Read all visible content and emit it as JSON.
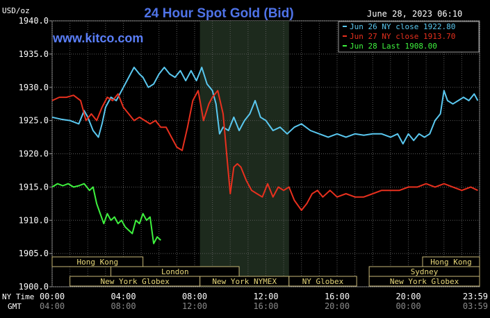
{
  "chart_data": {
    "type": "line",
    "title": "24 Hour Spot Gold (Bid)",
    "watermark": "www.kitco.com",
    "date_label": "June 28, 2023 06:10",
    "ylabel": "USD/oz",
    "ylim": [
      1900,
      1940
    ],
    "y_ticks": [
      "1940.0",
      "1935.0",
      "1930.0",
      "1925.0",
      "1920.0",
      "1915.0",
      "1910.0",
      "1905.0",
      "1900.0"
    ],
    "y_tick_values": [
      1940,
      1935,
      1930,
      1925,
      1920,
      1915,
      1910,
      1905,
      1900
    ],
    "x_row_labels": {
      "ny": "NY Time",
      "gmt": "GMT"
    },
    "x_ticks_ny": [
      "00:00",
      "04:00",
      "08:00",
      "12:00",
      "16:00",
      "20:00",
      "23:59"
    ],
    "x_ticks_gmt": [
      "04:00",
      "08:00",
      "12:00",
      "16:00",
      "20:00",
      "00:00",
      "03:59"
    ],
    "x_tick_hours": [
      0,
      4,
      8,
      12,
      16,
      20,
      24
    ],
    "xlim_hours": [
      0,
      24
    ],
    "grid": true,
    "legend_position": "top-right",
    "shaded_session_hours": [
      8.3,
      13.3
    ],
    "markets": [
      {
        "name": "Hong Kong",
        "start": -1,
        "end": 5.1,
        "row": 1
      },
      {
        "name": "London",
        "start": 3.3,
        "end": 10.5,
        "row": 2
      },
      {
        "name": "New York Globex",
        "start": 1.0,
        "end": 8.3,
        "row": 3
      },
      {
        "name": "New York NYMEX",
        "start": 8.3,
        "end": 13.3,
        "row": 3
      },
      {
        "name": "NY Globex",
        "start": 13.3,
        "end": 17.1,
        "row": 3
      },
      {
        "name": "Hong Kong",
        "start": 20.8,
        "end": 25,
        "row": 1
      },
      {
        "name": "Sydney",
        "start": 17.8,
        "end": 25,
        "row": 2
      },
      {
        "name": "New York Globex",
        "start": 17.8,
        "end": 25,
        "row": 3
      }
    ],
    "series": [
      {
        "name": "Jun 26 NY close 1922.80",
        "color": "#5ac8f0",
        "x": [
          0,
          0.5,
          1.0,
          1.5,
          1.8,
          2.0,
          2.3,
          2.6,
          2.8,
          3.0,
          3.3,
          3.6,
          4.0,
          4.3,
          4.6,
          4.9,
          5.1,
          5.4,
          5.7,
          6.0,
          6.3,
          6.6,
          6.9,
          7.2,
          7.5,
          7.8,
          8.1,
          8.4,
          8.7,
          9.0,
          9.2,
          9.4,
          9.6,
          9.9,
          10.2,
          10.5,
          10.8,
          11.1,
          11.4,
          11.7,
          12.0,
          12.4,
          12.8,
          13.2,
          13.6,
          14.0,
          14.5,
          15.0,
          15.5,
          16.0,
          16.5,
          17.0,
          17.5,
          18.0,
          18.5,
          19.0,
          19.4,
          19.7,
          20.0,
          20.3,
          20.6,
          20.9,
          21.2,
          21.5,
          21.8,
          22.0,
          22.2,
          22.5,
          22.8,
          23.1,
          23.4,
          23.7,
          23.9
        ],
        "y": [
          1925.5,
          1925.2,
          1925.0,
          1924.5,
          1926.5,
          1925.5,
          1923.5,
          1922.5,
          1924.5,
          1927.0,
          1928.5,
          1928.0,
          1930.0,
          1931.5,
          1933.0,
          1932.0,
          1931.5,
          1930.0,
          1930.5,
          1932.0,
          1933.0,
          1932.0,
          1931.5,
          1932.5,
          1931.0,
          1932.5,
          1931.0,
          1933.0,
          1930.5,
          1929.5,
          1927.5,
          1923.0,
          1924.0,
          1923.5,
          1925.5,
          1923.5,
          1925.0,
          1926.0,
          1928.0,
          1925.5,
          1925.0,
          1923.5,
          1924.0,
          1923.0,
          1924.0,
          1924.5,
          1923.5,
          1923.0,
          1922.5,
          1923.0,
          1922.5,
          1923.0,
          1922.8,
          1923.0,
          1923.0,
          1922.5,
          1923.0,
          1921.5,
          1923.0,
          1922.0,
          1923.0,
          1922.5,
          1923.0,
          1925.0,
          1926.0,
          1929.5,
          1928.0,
          1927.5,
          1928.0,
          1928.5,
          1928.0,
          1929.0,
          1928.0
        ]
      },
      {
        "name": "Jun 27 NY close 1913.70",
        "color": "#e8301e",
        "x": [
          0,
          0.4,
          0.8,
          1.2,
          1.6,
          1.9,
          2.2,
          2.5,
          2.8,
          3.1,
          3.4,
          3.7,
          4.0,
          4.3,
          4.6,
          4.9,
          5.2,
          5.5,
          5.8,
          6.1,
          6.4,
          6.7,
          7.0,
          7.3,
          7.6,
          7.9,
          8.2,
          8.5,
          8.8,
          9.0,
          9.3,
          9.6,
          9.8,
          10.0,
          10.2,
          10.4,
          10.6,
          10.9,
          11.2,
          11.5,
          11.8,
          12.1,
          12.4,
          12.7,
          13.0,
          13.3,
          13.6,
          14.0,
          14.3,
          14.6,
          14.9,
          15.2,
          15.6,
          16.0,
          16.5,
          17.0,
          17.5,
          18.0,
          18.5,
          19.0,
          19.5,
          20.0,
          20.5,
          21.0,
          21.5,
          22.0,
          22.5,
          23.0,
          23.5,
          23.9
        ],
        "y": [
          1928.0,
          1928.5,
          1928.5,
          1928.8,
          1928.0,
          1925.0,
          1926.0,
          1925.0,
          1927.0,
          1928.5,
          1928.0,
          1929.0,
          1927.0,
          1926.0,
          1925.0,
          1925.5,
          1925.0,
          1924.5,
          1925.0,
          1924.0,
          1924.0,
          1922.5,
          1921.0,
          1920.5,
          1924.0,
          1928.0,
          1929.5,
          1925.0,
          1927.5,
          1928.5,
          1929.5,
          1926.0,
          1920.0,
          1914.0,
          1918.0,
          1918.5,
          1918.0,
          1916.0,
          1914.5,
          1914.0,
          1913.5,
          1915.5,
          1913.5,
          1915.0,
          1914.5,
          1915.0,
          1913.0,
          1911.5,
          1912.5,
          1914.0,
          1914.5,
          1913.5,
          1914.5,
          1913.5,
          1914.0,
          1913.5,
          1913.5,
          1914.0,
          1914.5,
          1914.5,
          1914.5,
          1915.0,
          1915.0,
          1915.5,
          1915.0,
          1915.5,
          1915.0,
          1914.5,
          1915.0,
          1914.5
        ]
      },
      {
        "name": "Jun 28 Last 1908.00",
        "color": "#3ef23e",
        "x": [
          0,
          0.3,
          0.6,
          0.9,
          1.2,
          1.5,
          1.8,
          2.1,
          2.3,
          2.5,
          2.7,
          2.9,
          3.1,
          3.3,
          3.5,
          3.7,
          3.9,
          4.1,
          4.3,
          4.5,
          4.7,
          4.9,
          5.1,
          5.3,
          5.5,
          5.7,
          5.9,
          6.1
        ],
        "y": [
          1915.0,
          1915.5,
          1915.2,
          1915.5,
          1915.0,
          1915.2,
          1915.5,
          1914.5,
          1915.0,
          1912.5,
          1911.0,
          1909.5,
          1911.0,
          1910.0,
          1910.5,
          1909.5,
          1910.0,
          1909.0,
          1908.5,
          1908.0,
          1910.0,
          1909.5,
          1911.0,
          1910.0,
          1910.5,
          1906.5,
          1907.5,
          1907.0
        ]
      }
    ]
  }
}
